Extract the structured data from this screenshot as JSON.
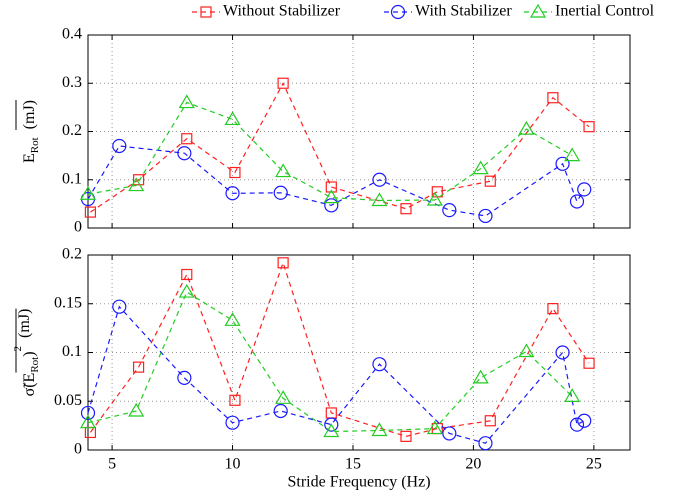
{
  "chart_data": [
    {
      "type": "line",
      "ylabel": [
        "E",
        "Rot",
        "(mJ)"
      ],
      "xlim": [
        4,
        26.5
      ],
      "xticks": [
        5,
        10,
        15,
        20,
        25
      ],
      "ylim": [
        0,
        0.4
      ],
      "yticks": [
        0,
        0.1,
        0.2,
        0.3,
        0.4
      ],
      "grid": true,
      "legend": "top",
      "series": [
        {
          "name": "Without Stabilizer",
          "color": "#ff2020",
          "marker": "square",
          "x": [
            4.1,
            6.1,
            8.1,
            10.1,
            12.1,
            14.1,
            17.2,
            18.5,
            20.7,
            23.3,
            24.8
          ],
          "values": [
            0.033,
            0.1,
            0.185,
            0.115,
            0.3,
            0.085,
            0.04,
            0.075,
            0.097,
            0.27,
            0.21
          ]
        },
        {
          "name": "With Stabilizer",
          "color": "#1a1aff",
          "marker": "circle",
          "x": [
            4.0,
            5.3,
            8.0,
            10.0,
            12.0,
            14.1,
            16.1,
            19.0,
            20.5,
            23.7,
            24.3,
            24.6
          ],
          "values": [
            0.06,
            0.17,
            0.155,
            0.072,
            0.073,
            0.047,
            0.1,
            0.037,
            0.025,
            0.133,
            0.055,
            0.08
          ]
        },
        {
          "name": "Inertial Control",
          "color": "#22cc22",
          "marker": "triangle",
          "x": [
            4.0,
            6.0,
            8.1,
            10.0,
            12.1,
            14.1,
            16.1,
            18.4,
            20.3,
            22.2,
            24.1
          ],
          "values": [
            0.07,
            0.088,
            0.26,
            0.225,
            0.117,
            0.063,
            0.057,
            0.058,
            0.123,
            0.205,
            0.15
          ]
        }
      ]
    },
    {
      "type": "line",
      "ylabel": [
        "σ̃(E",
        "Rot",
        ")",
        "2",
        "(mJ)"
      ],
      "xlabel": "Stride Frequency (Hz)",
      "xlim": [
        4,
        26.5
      ],
      "xticks": [
        5,
        10,
        15,
        20,
        25
      ],
      "ylim": [
        0,
        0.2
      ],
      "yticks": [
        0,
        0.05,
        0.1,
        0.15,
        0.2
      ],
      "grid": true,
      "series": [
        {
          "color": "#ff2020",
          "marker": "square",
          "x": [
            4.1,
            6.1,
            8.1,
            10.1,
            12.1,
            14.1,
            17.2,
            18.5,
            20.7,
            23.3,
            24.8
          ],
          "values": [
            0.018,
            0.085,
            0.18,
            0.051,
            0.192,
            0.038,
            0.014,
            0.022,
            0.03,
            0.145,
            0.089
          ]
        },
        {
          "color": "#1a1aff",
          "marker": "circle",
          "x": [
            4.0,
            5.3,
            8.0,
            10.0,
            12.0,
            14.1,
            16.1,
            19.0,
            20.5,
            23.7,
            24.3,
            24.6
          ],
          "values": [
            0.038,
            0.147,
            0.074,
            0.028,
            0.04,
            0.026,
            0.088,
            0.017,
            0.007,
            0.1,
            0.026,
            0.03
          ]
        },
        {
          "color": "#22cc22",
          "marker": "triangle",
          "x": [
            4.0,
            6.0,
            8.1,
            10.0,
            12.1,
            14.1,
            16.1,
            18.4,
            20.3,
            22.2,
            24.1
          ],
          "values": [
            0.028,
            0.04,
            0.162,
            0.133,
            0.053,
            0.019,
            0.02,
            0.022,
            0.074,
            0.101,
            0.055
          ]
        }
      ]
    }
  ]
}
